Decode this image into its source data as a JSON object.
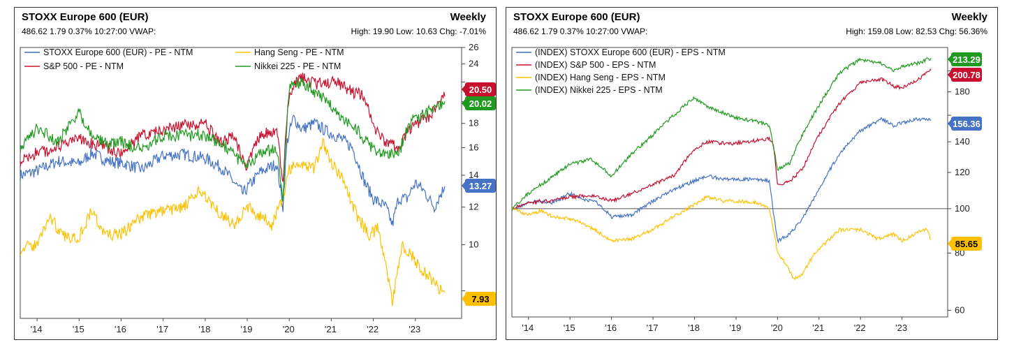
{
  "charts": [
    {
      "title": "STOXX Europe 600 (EUR)",
      "period": "Weekly",
      "quote_line": "486.62 1.79 0.37% 10:27:00 VWAP:",
      "stats_line": "High: 19.90 Low: 10.63 Chg: -7.01%",
      "x_ticks": [
        "'14",
        "'15",
        "'16",
        "'17",
        "'18",
        "'19",
        "'20",
        "'21",
        "'22",
        "'23"
      ]
    },
    {
      "title": "STOXX Europe 600 (EUR)",
      "period": "Weekly",
      "quote_line": "486.62 1.79 0.37% 10:27:00 VWAP:",
      "stats_line": "High: 159.08 Low: 82.53 Chg: 56.36%",
      "x_ticks": [
        "'14",
        "'15",
        "'16",
        "'17",
        "'18",
        "'19",
        "'20",
        "'21",
        "'22",
        "'23"
      ]
    }
  ],
  "chart_data": [
    {
      "type": "line",
      "title": "STOXX Europe 600 (EUR)",
      "y_scale": "log",
      "ylim": [
        7,
        26
      ],
      "yticks": [
        26,
        24,
        22,
        20,
        18,
        16,
        14,
        12,
        10,
        8
      ],
      "ytick_labels": [
        "26",
        "24",
        "",
        "",
        "18",
        "16",
        "14",
        "12",
        "10",
        ""
      ],
      "x_years": [
        2014,
        2015,
        2016,
        2017,
        2018,
        2019,
        2020,
        2021,
        2022,
        2023
      ],
      "xlim": [
        2013.6,
        2024.1
      ],
      "series": [
        {
          "name": "STOXX Europe 600 (EUR) - PE - NTM",
          "color": "#4472c4",
          "last_value": "13.27",
          "x": [
            2013.6,
            2014.0,
            2014.5,
            2015.0,
            2015.3,
            2015.7,
            2016.1,
            2016.5,
            2017.0,
            2017.5,
            2018.0,
            2018.4,
            2018.9,
            2019.3,
            2019.7,
            2019.85,
            2019.95,
            2020.1,
            2020.3,
            2020.6,
            2020.9,
            2021.2,
            2021.5,
            2021.8,
            2022.0,
            2022.3,
            2022.45,
            2022.6,
            2022.8,
            2023.0,
            2023.2,
            2023.45,
            2023.7
          ],
          "values": [
            14.0,
            14.3,
            15.0,
            14.8,
            15.6,
            15.0,
            14.8,
            14.4,
            15.4,
            15.5,
            15.2,
            14.5,
            12.8,
            14.2,
            14.8,
            12.0,
            16.5,
            18.5,
            17.5,
            18.0,
            17.3,
            16.8,
            16.0,
            13.5,
            12.5,
            12.0,
            11.0,
            12.5,
            12.5,
            13.5,
            13.0,
            12.0,
            13.27
          ]
        },
        {
          "name": "Hang Seng - PE - NTM",
          "color": "#ffc000",
          "last_value": "7.93",
          "x": [
            2013.6,
            2014.0,
            2014.3,
            2014.6,
            2015.0,
            2015.3,
            2015.6,
            2016.0,
            2016.5,
            2017.0,
            2017.5,
            2017.9,
            2018.3,
            2018.7,
            2019.0,
            2019.3,
            2019.6,
            2019.85,
            2020.0,
            2020.3,
            2020.6,
            2020.8,
            2021.0,
            2021.3,
            2021.6,
            2021.9,
            2022.1,
            2022.25,
            2022.45,
            2022.7,
            2022.9,
            2023.2,
            2023.5,
            2023.7
          ],
          "values": [
            9.8,
            10.0,
            11.5,
            10.4,
            10.4,
            11.8,
            10.5,
            10.5,
            11.5,
            11.8,
            12.0,
            13.0,
            11.8,
            11.0,
            12.0,
            11.5,
            11.0,
            12.5,
            14.5,
            14.8,
            14.5,
            16.5,
            15.0,
            13.5,
            11.5,
            10.5,
            10.8,
            9.5,
            7.5,
            10.0,
            9.5,
            8.8,
            8.2,
            7.93
          ]
        },
        {
          "name": "S&P 500 - PE - NTM",
          "color": "#c8102e",
          "last_value": "20.50",
          "x": [
            2013.6,
            2014.0,
            2014.5,
            2015.0,
            2015.5,
            2016.0,
            2016.5,
            2017.0,
            2017.5,
            2018.0,
            2018.3,
            2018.7,
            2018.95,
            2019.3,
            2019.7,
            2019.85,
            2020.0,
            2020.3,
            2020.6,
            2020.9,
            2021.2,
            2021.5,
            2021.8,
            2022.0,
            2022.3,
            2022.6,
            2022.8,
            2023.0,
            2023.3,
            2023.7
          ],
          "values": [
            15.0,
            15.6,
            16.0,
            16.7,
            16.2,
            15.5,
            17.0,
            17.5,
            17.8,
            18.0,
            16.5,
            16.8,
            14.5,
            17.0,
            17.5,
            13.5,
            21.0,
            22.5,
            21.8,
            22.0,
            21.8,
            21.0,
            20.5,
            17.5,
            16.5,
            16.0,
            17.0,
            18.0,
            18.5,
            20.5
          ]
        },
        {
          "name": "Nikkei 225 - PE - NTM",
          "color": "#1f9a1f",
          "last_value": "20.02",
          "x": [
            2013.6,
            2014.0,
            2014.5,
            2015.0,
            2015.3,
            2015.7,
            2016.0,
            2016.5,
            2017.0,
            2017.5,
            2018.0,
            2018.3,
            2018.7,
            2018.95,
            2019.3,
            2019.7,
            2019.85,
            2020.0,
            2020.3,
            2020.6,
            2020.9,
            2021.2,
            2021.5,
            2021.8,
            2022.0,
            2022.3,
            2022.6,
            2022.8,
            2023.0,
            2023.3,
            2023.7
          ],
          "values": [
            16.0,
            17.5,
            16.5,
            19.0,
            17.0,
            16.2,
            16.5,
            15.8,
            17.0,
            17.0,
            17.0,
            16.5,
            15.5,
            14.5,
            15.5,
            16.0,
            12.5,
            21.5,
            22.0,
            21.0,
            20.0,
            18.5,
            18.0,
            16.5,
            16.0,
            15.5,
            15.5,
            17.5,
            18.5,
            19.0,
            20.02
          ]
        }
      ]
    },
    {
      "type": "line",
      "title": "STOXX Europe 600 (EUR)",
      "y_scale": "log",
      "ylim": [
        58,
        225
      ],
      "yticks": [
        200,
        180,
        160,
        140,
        120,
        100,
        80,
        60
      ],
      "ytick_labels": [
        "",
        "180",
        "",
        "140",
        "120",
        "100",
        "80",
        "60"
      ],
      "reference_line": 100,
      "x_years": [
        2014,
        2015,
        2016,
        2017,
        2018,
        2019,
        2020,
        2021,
        2022,
        2023
      ],
      "xlim": [
        2013.6,
        2024.1
      ],
      "series": [
        {
          "name": "(INDEX) STOXX Europe 600 (EUR) - EPS - NTM",
          "color": "#4472c4",
          "last_value": "156.36",
          "x": [
            2013.6,
            2014.0,
            2014.3,
            2014.6,
            2015.0,
            2015.3,
            2015.6,
            2016.0,
            2016.5,
            2017.0,
            2017.5,
            2018.0,
            2018.3,
            2018.7,
            2019.0,
            2019.5,
            2019.8,
            2019.9,
            2020.0,
            2020.3,
            2020.6,
            2021.0,
            2021.5,
            2022.0,
            2022.5,
            2022.8,
            2023.0,
            2023.4,
            2023.7
          ],
          "values": [
            100,
            103,
            104,
            103,
            108,
            105,
            104,
            96,
            97,
            104,
            110,
            115,
            118,
            116,
            116,
            116,
            115,
            98,
            85,
            88,
            95,
            110,
            132,
            148,
            157,
            152,
            154,
            157,
            156.36
          ]
        },
        {
          "name": "(INDEX) S&P 500 - EPS - NTM",
          "color": "#c8102e",
          "last_value": "200.78",
          "x": [
            2013.6,
            2014.0,
            2014.5,
            2015.0,
            2015.5,
            2016.0,
            2016.5,
            2017.0,
            2017.5,
            2018.0,
            2018.3,
            2018.7,
            2019.0,
            2019.5,
            2019.8,
            2019.9,
            2020.0,
            2020.3,
            2020.6,
            2021.0,
            2021.5,
            2022.0,
            2022.5,
            2022.8,
            2023.0,
            2023.4,
            2023.7
          ],
          "values": [
            100,
            103,
            104,
            106,
            107,
            104,
            108,
            113,
            118,
            135,
            140,
            139,
            139,
            141,
            142,
            138,
            113,
            115,
            122,
            145,
            170,
            188,
            192,
            185,
            184,
            192,
            200.78
          ]
        },
        {
          "name": "(INDEX) Hang Seng - EPS - NTM",
          "color": "#ffc000",
          "last_value": "85.65",
          "x": [
            2013.6,
            2014.0,
            2014.3,
            2014.6,
            2015.0,
            2015.3,
            2015.6,
            2016.0,
            2016.5,
            2017.0,
            2017.5,
            2018.0,
            2018.3,
            2018.7,
            2019.0,
            2019.5,
            2019.8,
            2020.0,
            2020.2,
            2020.4,
            2020.6,
            2020.9,
            2021.2,
            2021.5,
            2022.0,
            2022.4,
            2022.8,
            2023.0,
            2023.4,
            2023.6,
            2023.7
          ],
          "values": [
            100,
            97,
            99,
            96,
            95,
            93,
            90,
            85,
            86,
            90,
            96,
            102,
            106,
            104,
            104,
            103,
            100,
            80,
            76,
            70,
            72,
            80,
            85,
            90,
            90,
            86,
            88,
            85,
            89,
            90,
            85.65
          ]
        },
        {
          "name": "(INDEX) Nikkei 225 - EPS - NTM",
          "color": "#1f9a1f",
          "last_value": "213.29",
          "x": [
            2013.6,
            2014.0,
            2014.5,
            2015.0,
            2015.5,
            2016.0,
            2016.5,
            2017.0,
            2017.5,
            2018.0,
            2018.3,
            2018.7,
            2019.0,
            2019.5,
            2019.8,
            2020.0,
            2020.3,
            2020.6,
            2021.0,
            2021.5,
            2022.0,
            2022.5,
            2022.8,
            2023.0,
            2023.4,
            2023.7
          ],
          "values": [
            100,
            108,
            116,
            125,
            128,
            118,
            132,
            145,
            160,
            175,
            167,
            162,
            158,
            155,
            152,
            122,
            126,
            145,
            168,
            198,
            212,
            208,
            200,
            205,
            208,
            213.29
          ]
        }
      ]
    }
  ]
}
